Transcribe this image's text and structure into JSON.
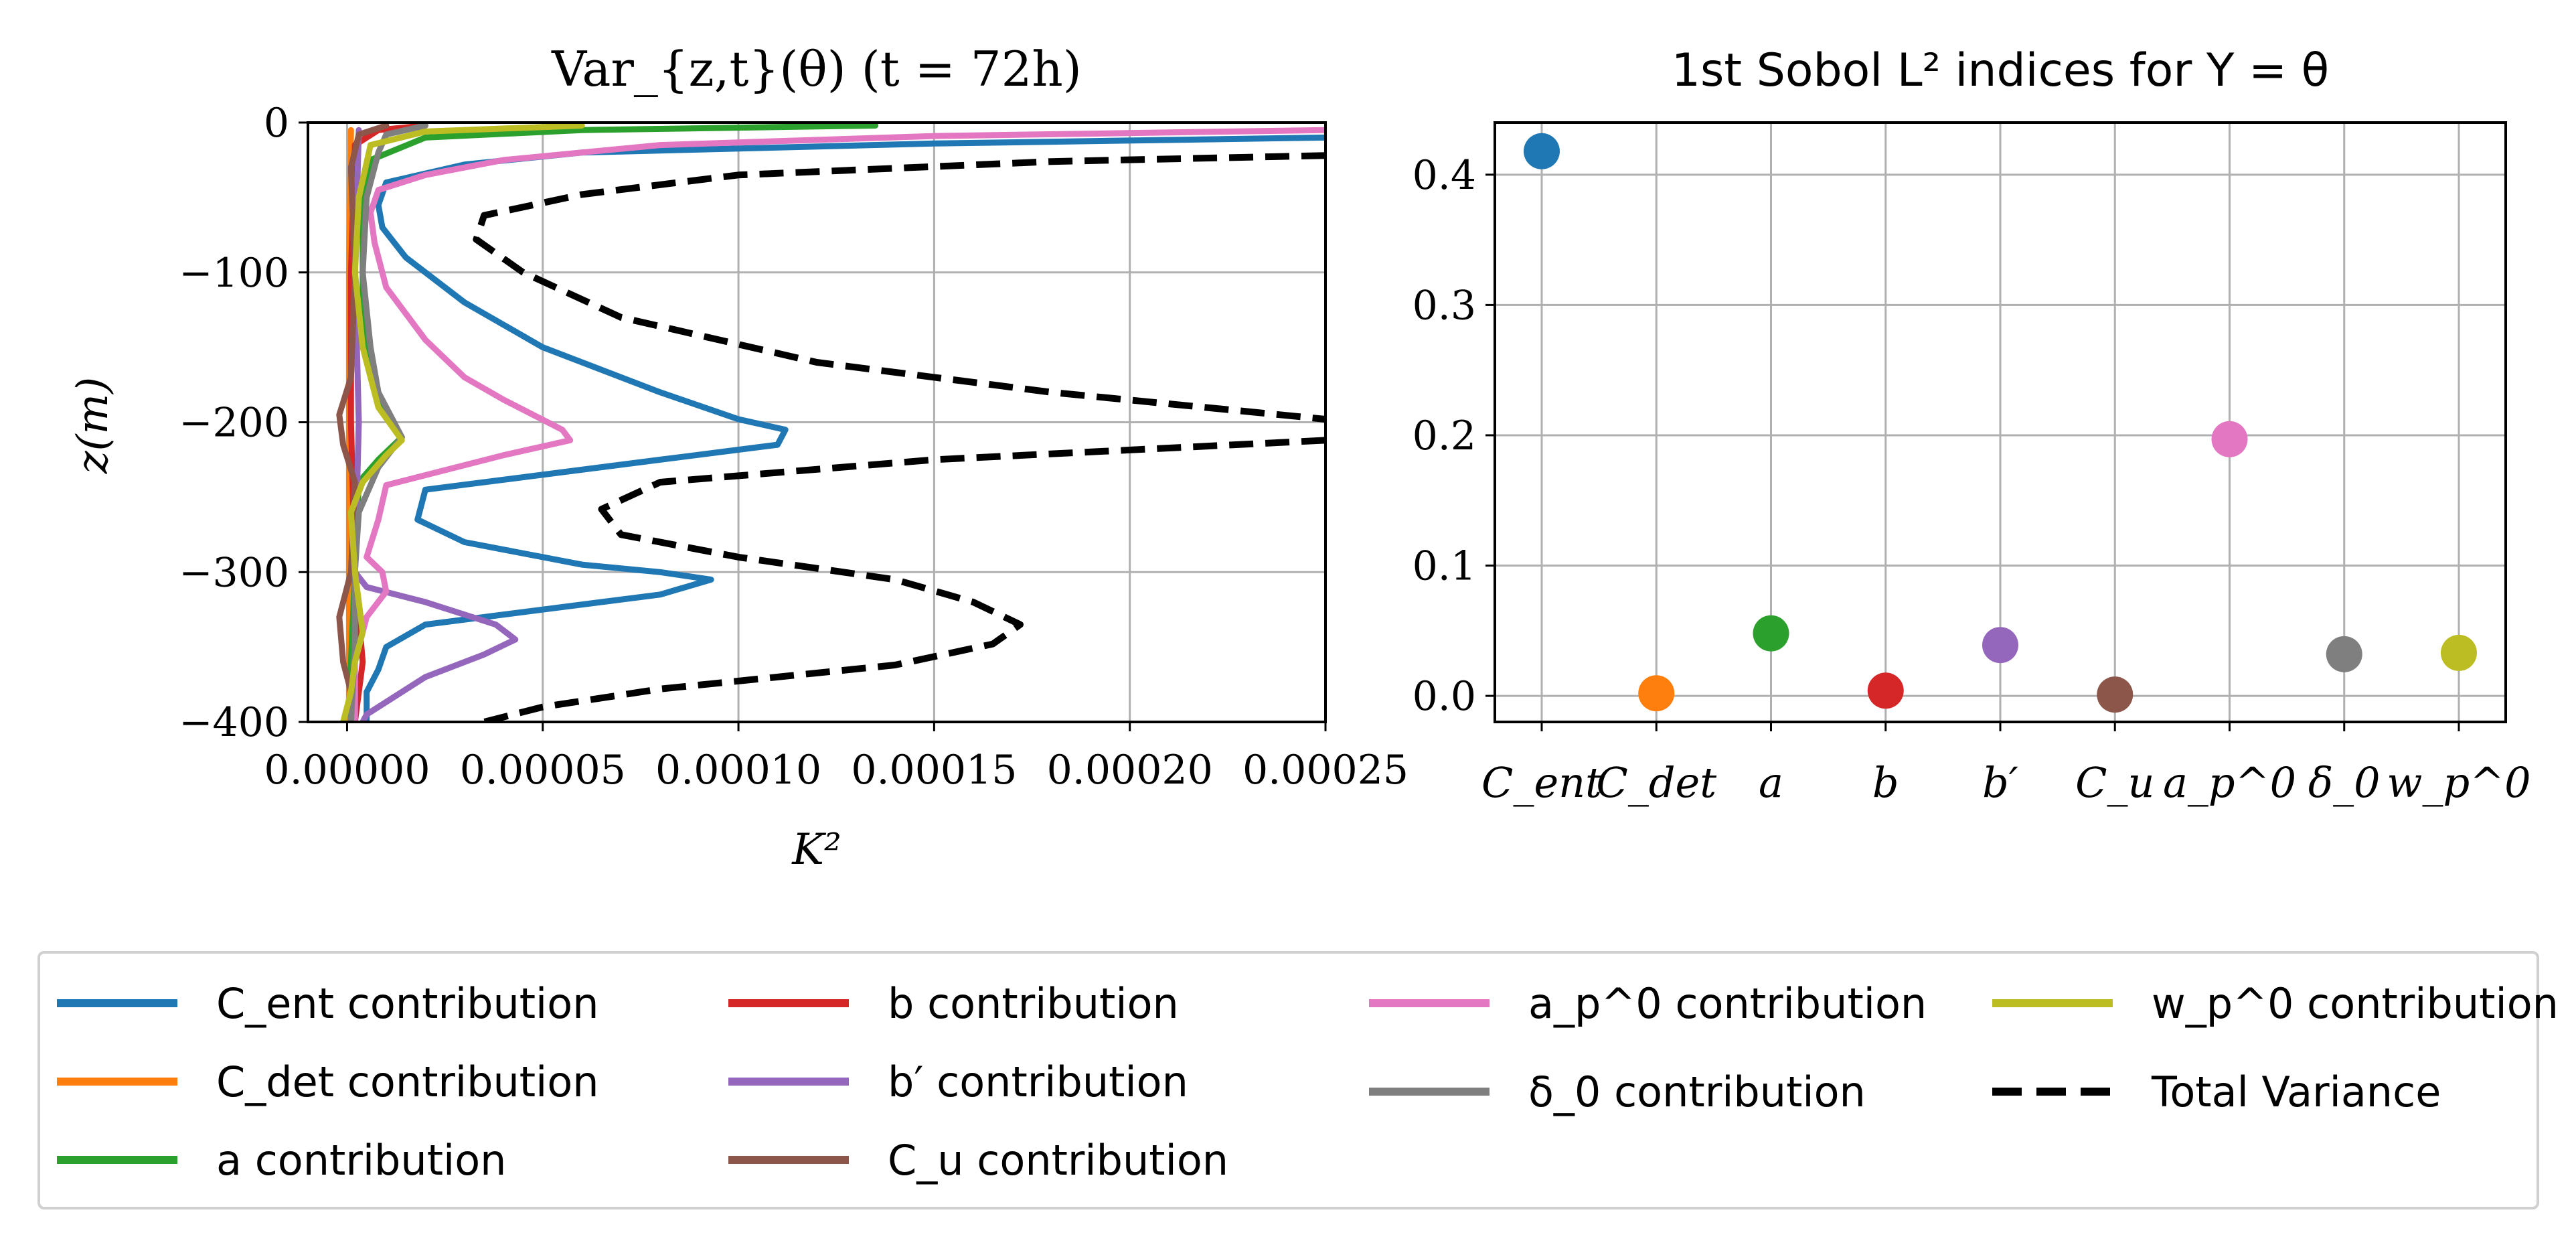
{
  "chart_data": [
    {
      "type": "line",
      "title": "Var_{z,t}(θ) (t = 72h)",
      "xlabel": "K²",
      "ylabel": "z(m)",
      "xlim": [
        -1e-05,
        0.00025
      ],
      "ylim": [
        -400,
        0
      ],
      "xticks": [
        "0.00000",
        "0.00005",
        "0.00010",
        "0.00015",
        "0.00020",
        "0.00025"
      ],
      "yticks": [
        "0",
        "−100",
        "−200",
        "−300",
        "−400"
      ],
      "grid": true,
      "series": [
        {
          "name": "C_ent contribution",
          "color": "#1f77b4",
          "style": "solid",
          "points": [
            [
              0.00025,
              -10
            ],
            [
              0.00015,
              -14
            ],
            [
              6e-05,
              -20
            ],
            [
              3e-05,
              -28
            ],
            [
              1e-05,
              -40
            ],
            [
              8e-06,
              -55
            ],
            [
              9e-06,
              -70
            ],
            [
              1.5e-05,
              -90
            ],
            [
              3e-05,
              -120
            ],
            [
              5e-05,
              -150
            ],
            [
              8e-05,
              -180
            ],
            [
              0.0001,
              -198
            ],
            [
              0.000112,
              -205
            ],
            [
              0.00011,
              -215
            ],
            [
              8e-05,
              -225
            ],
            [
              2e-05,
              -245
            ],
            [
              1.8e-05,
              -265
            ],
            [
              3e-05,
              -280
            ],
            [
              6e-05,
              -295
            ],
            [
              8e-05,
              -300
            ],
            [
              9.3e-05,
              -305
            ],
            [
              8e-05,
              -315
            ],
            [
              5e-05,
              -325
            ],
            [
              2e-05,
              -335
            ],
            [
              1e-05,
              -350
            ],
            [
              8e-06,
              -365
            ],
            [
              5e-06,
              -380
            ],
            [
              5e-06,
              -400
            ]
          ]
        },
        {
          "name": "C_det contribution",
          "color": "#ff7f0e",
          "style": "solid",
          "points": [
            [
              1e-06,
              -5
            ],
            [
              5e-07,
              -100
            ],
            [
              5e-07,
              -200
            ],
            [
              5e-07,
              -300
            ],
            [
              5e-07,
              -400
            ]
          ]
        },
        {
          "name": "a contribution",
          "color": "#2ca02c",
          "style": "solid",
          "points": [
            [
              0.000135,
              -2
            ],
            [
              6e-05,
              -5
            ],
            [
              2e-05,
              -10
            ],
            [
              6e-06,
              -25
            ],
            [
              4e-06,
              -60
            ],
            [
              4e-06,
              -120
            ],
            [
              6e-06,
              -170
            ],
            [
              1e-05,
              -195
            ],
            [
              1.4e-05,
              -210
            ],
            [
              8e-06,
              -225
            ],
            [
              3e-06,
              -240
            ],
            [
              2e-06,
              -300
            ],
            [
              1e-06,
              -360
            ],
            [
              1e-06,
              -400
            ]
          ]
        },
        {
          "name": "b contribution",
          "color": "#d62728",
          "style": "solid",
          "points": [
            [
              2e-05,
              -2
            ],
            [
              8e-06,
              -5
            ],
            [
              2e-06,
              -15
            ],
            [
              1e-06,
              -100
            ],
            [
              1e-06,
              -200
            ],
            [
              2e-06,
              -300
            ],
            [
              4e-06,
              -360
            ],
            [
              2e-06,
              -400
            ]
          ]
        },
        {
          "name": "b′ contribution",
          "color": "#9467bd",
          "style": "solid",
          "points": [
            [
              3e-06,
              -5
            ],
            [
              2e-06,
              -100
            ],
            [
              3e-06,
              -200
            ],
            [
              2e-06,
              -300
            ],
            [
              5e-06,
              -310
            ],
            [
              2e-05,
              -320
            ],
            [
              3.8e-05,
              -335
            ],
            [
              4.3e-05,
              -345
            ],
            [
              3.5e-05,
              -355
            ],
            [
              2e-05,
              -370
            ],
            [
              5e-06,
              -395
            ],
            [
              4e-06,
              -400
            ]
          ]
        },
        {
          "name": "C_u contribution",
          "color": "#8c564b",
          "style": "solid",
          "points": [
            [
              1e-05,
              -2
            ],
            [
              3e-06,
              -8
            ],
            [
              1e-06,
              -30
            ],
            [
              2e-06,
              -100
            ],
            [
              1e-06,
              -170
            ],
            [
              -2e-06,
              -195
            ],
            [
              -1e-06,
              -215
            ],
            [
              2e-06,
              -240
            ],
            [
              1e-06,
              -300
            ],
            [
              -2e-06,
              -330
            ],
            [
              -1e-06,
              -360
            ],
            [
              2e-06,
              -390
            ],
            [
              1e-06,
              -400
            ]
          ]
        },
        {
          "name": "a_p^0 contribution",
          "color": "#e377c2",
          "style": "solid",
          "points": [
            [
              0.00025,
              -5
            ],
            [
              0.00015,
              -9
            ],
            [
              8e-05,
              -15
            ],
            [
              4e-05,
              -25
            ],
            [
              2e-05,
              -35
            ],
            [
              8e-06,
              -45
            ],
            [
              6e-06,
              -60
            ],
            [
              7e-06,
              -80
            ],
            [
              1e-05,
              -110
            ],
            [
              2e-05,
              -145
            ],
            [
              3e-05,
              -170
            ],
            [
              4e-05,
              -185
            ],
            [
              5.5e-05,
              -205
            ],
            [
              5.7e-05,
              -212
            ],
            [
              4e-05,
              -222
            ],
            [
              1e-05,
              -242
            ],
            [
              8e-06,
              -265
            ],
            [
              5e-06,
              -290
            ],
            [
              9e-06,
              -300
            ],
            [
              1e-05,
              -313
            ],
            [
              5e-06,
              -330
            ],
            [
              2e-06,
              -360
            ],
            [
              2e-06,
              -400
            ]
          ]
        },
        {
          "name": "δ_0 contribution",
          "color": "#7f7f7f",
          "style": "solid",
          "points": [
            [
              2e-05,
              -2
            ],
            [
              1e-05,
              -8
            ],
            [
              8e-06,
              -20
            ],
            [
              5e-06,
              -50
            ],
            [
              4e-06,
              -100
            ],
            [
              6e-06,
              -150
            ],
            [
              8e-06,
              -180
            ],
            [
              1.2e-05,
              -200
            ],
            [
              1.4e-05,
              -210
            ],
            [
              8e-06,
              -230
            ],
            [
              3e-06,
              -260
            ],
            [
              2e-06,
              -300
            ],
            [
              2e-06,
              -350
            ],
            [
              1e-06,
              -400
            ]
          ]
        },
        {
          "name": "w_p^0 contribution",
          "color": "#bcbd22",
          "style": "solid",
          "points": [
            [
              6e-05,
              -2
            ],
            [
              2e-05,
              -6
            ],
            [
              6e-06,
              -15
            ],
            [
              3e-06,
              -50
            ],
            [
              2e-06,
              -100
            ],
            [
              4e-06,
              -150
            ],
            [
              8e-06,
              -190
            ],
            [
              1.4e-05,
              -212
            ],
            [
              1e-05,
              -222
            ],
            [
              4e-06,
              -240
            ],
            [
              1e-06,
              -260
            ],
            [
              2e-06,
              -300
            ],
            [
              4e-06,
              -340
            ],
            [
              2e-06,
              -360
            ],
            [
              1e-06,
              -380
            ],
            [
              -1e-06,
              -400
            ]
          ]
        },
        {
          "name": "Total Variance",
          "color": "#000000",
          "style": "dashed",
          "points": [
            [
              0.00025,
              -22
            ],
            [
              0.00018,
              -26
            ],
            [
              0.0001,
              -35
            ],
            [
              6e-05,
              -48
            ],
            [
              3.5e-05,
              -62
            ],
            [
              3.3e-05,
              -78
            ],
            [
              4.5e-05,
              -100
            ],
            [
              7e-05,
              -130
            ],
            [
              0.00012,
              -160
            ],
            [
              0.00018,
              -180
            ],
            [
              0.00025,
              -198
            ]
          ]
        },
        {
          "name": "Total Variance",
          "color": "#000000",
          "style": "dashed",
          "points": [
            [
              0.00025,
              -212
            ],
            [
              0.00015,
              -225
            ],
            [
              8e-05,
              -240
            ],
            [
              6.5e-05,
              -258
            ],
            [
              7e-05,
              -275
            ],
            [
              0.0001,
              -290
            ],
            [
              0.00014,
              -305
            ],
            [
              0.00016,
              -320
            ],
            [
              0.000172,
              -335
            ],
            [
              0.000165,
              -348
            ],
            [
              0.00014,
              -362
            ],
            [
              8e-05,
              -378
            ],
            [
              5e-05,
              -390
            ],
            [
              3.5e-05,
              -400
            ]
          ]
        }
      ]
    },
    {
      "type": "scatter",
      "title": "1st Sobol L² indices for Y = θ",
      "categories": [
        "C_ent",
        "C_det",
        "a",
        "b",
        "b′",
        "C_u",
        "a_p^0",
        "δ_0",
        "w_p^0"
      ],
      "values": [
        0.418,
        0.002,
        0.048,
        0.004,
        0.039,
        0.001,
        0.197,
        0.032,
        0.033
      ],
      "colors": [
        "#1f77b4",
        "#ff7f0e",
        "#2ca02c",
        "#d62728",
        "#9467bd",
        "#8c564b",
        "#e377c2",
        "#7f7f7f",
        "#bcbd22"
      ],
      "ylim": [
        -0.02,
        0.44
      ],
      "yticks": [
        "0.0",
        "0.1",
        "0.2",
        "0.3",
        "0.4"
      ],
      "grid": true
    }
  ],
  "legend": {
    "placement": "bottom",
    "entries": [
      {
        "label": "C_ent contribution",
        "color": "#1f77b4",
        "style": "solid"
      },
      {
        "label": "C_det contribution",
        "color": "#ff7f0e",
        "style": "solid"
      },
      {
        "label": "a contribution",
        "color": "#2ca02c",
        "style": "solid"
      },
      {
        "label": "b contribution",
        "color": "#d62728",
        "style": "solid"
      },
      {
        "label": "b′ contribution",
        "color": "#9467bd",
        "style": "solid"
      },
      {
        "label": "C_u contribution",
        "color": "#8c564b",
        "style": "solid"
      },
      {
        "label": "a_p^0 contribution",
        "color": "#e377c2",
        "style": "solid"
      },
      {
        "label": "δ_0 contribution",
        "color": "#7f7f7f",
        "style": "solid"
      },
      {
        "label": "w_p^0 contribution",
        "color": "#bcbd22",
        "style": "solid"
      },
      {
        "label": "Total Variance",
        "color": "#000000",
        "style": "dashed"
      }
    ]
  }
}
